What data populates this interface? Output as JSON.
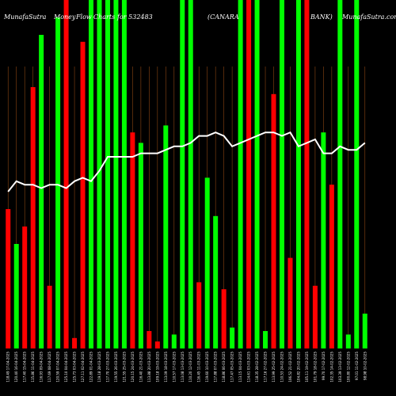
{
  "chart_data": {
    "type": "bar",
    "title_parts": [
      "MunafaSutra",
      "Money",
      "Flow",
      "Charts",
      "for 532483",
      "(CANARA",
      "BANK)",
      "MunafaSutra.com"
    ],
    "colors": {
      "up": "#00ff00",
      "down": "#ff0000",
      "line": "#ffffff",
      "grid": "#8b4513",
      "background": "#000000"
    },
    "ylim": [
      0,
      100
    ],
    "categories": [
      "118.49 17-04-2025",
      "120.40 16-04-2025",
      "117.40 15-04-2025",
      "115.86 11-04-2025",
      "116.93 09-04-2025",
      "117.69 08-04-2025",
      "120.59 07-04-2025",
      "125.10 04-04-2025",
      "125.73 03-04-2025",
      "127.11 02-04-2025",
      "122.89 01-04-2025",
      "119.18 28-03-2025",
      "117.70 27-03-2025",
      "119.55 26-03-2025",
      "121.55 25-03-2025",
      "120.15 24-03-2025",
      "116.40 21-03-2025",
      "113.88 20-03-2025",
      "109.18 19-03-2025",
      "113.09 18-03-2025",
      "110.57 17-03-2025",
      "113.08 13-03-2025",
      "110.20 12-03-2025",
      "116.45 11-03-2025",
      "119.60 10-03-2025",
      "117.88 07-03-2025",
      "118.86 06-03-2025",
      "117.47 05-03-2025",
      "113.15 04-03-2025",
      "114.61 03-03-2025",
      "118.35 28-02-2025",
      "117.16 27-02-2025",
      "113.99 25-02-2025",
      "110.53 24-02-2025",
      "106.52 21-02-2025",
      "104.82 20-02-2025",
      "105.11 19-02-2025",
      "101.79 18-02-2025",
      "99.70 17-02-2025",
      "102.35 14-02-2025",
      "103.39 13-02-2025",
      "100.80 12-02-2025",
      "97.01 11-02-2025",
      "98.98 10-02-2025"
    ],
    "series": [
      {
        "role": "bars",
        "values": [
          40,
          30,
          35,
          75,
          90,
          18,
          95,
          100,
          3,
          88,
          100,
          100,
          100,
          100,
          100,
          62,
          59,
          5,
          2,
          64,
          4,
          100,
          100,
          19,
          49,
          38,
          17,
          6,
          100,
          100,
          100,
          5,
          73,
          100,
          26,
          100,
          100,
          18,
          62,
          47,
          100,
          4,
          100,
          10
        ],
        "directions": [
          "down",
          "up",
          "down",
          "down",
          "up",
          "down",
          "up",
          "down",
          "down",
          "down",
          "up",
          "up",
          "up",
          "up",
          "up",
          "down",
          "up",
          "down",
          "down",
          "up",
          "up",
          "up",
          "up",
          "down",
          "up",
          "up",
          "down",
          "up",
          "up",
          "down",
          "up",
          "up",
          "down",
          "up",
          "down",
          "up",
          "down",
          "down",
          "up",
          "down",
          "up",
          "up",
          "up",
          "up"
        ]
      },
      {
        "role": "line",
        "values": [
          45,
          48,
          47,
          47,
          46,
          47,
          47,
          46,
          48,
          49,
          48,
          51,
          55,
          55,
          55,
          55,
          56,
          56,
          56,
          57,
          58,
          58,
          59,
          61,
          61,
          62,
          61,
          58,
          59,
          60,
          61,
          62,
          62,
          61,
          62,
          58,
          59,
          60,
          56,
          56,
          58,
          57,
          57,
          59
        ]
      }
    ]
  }
}
